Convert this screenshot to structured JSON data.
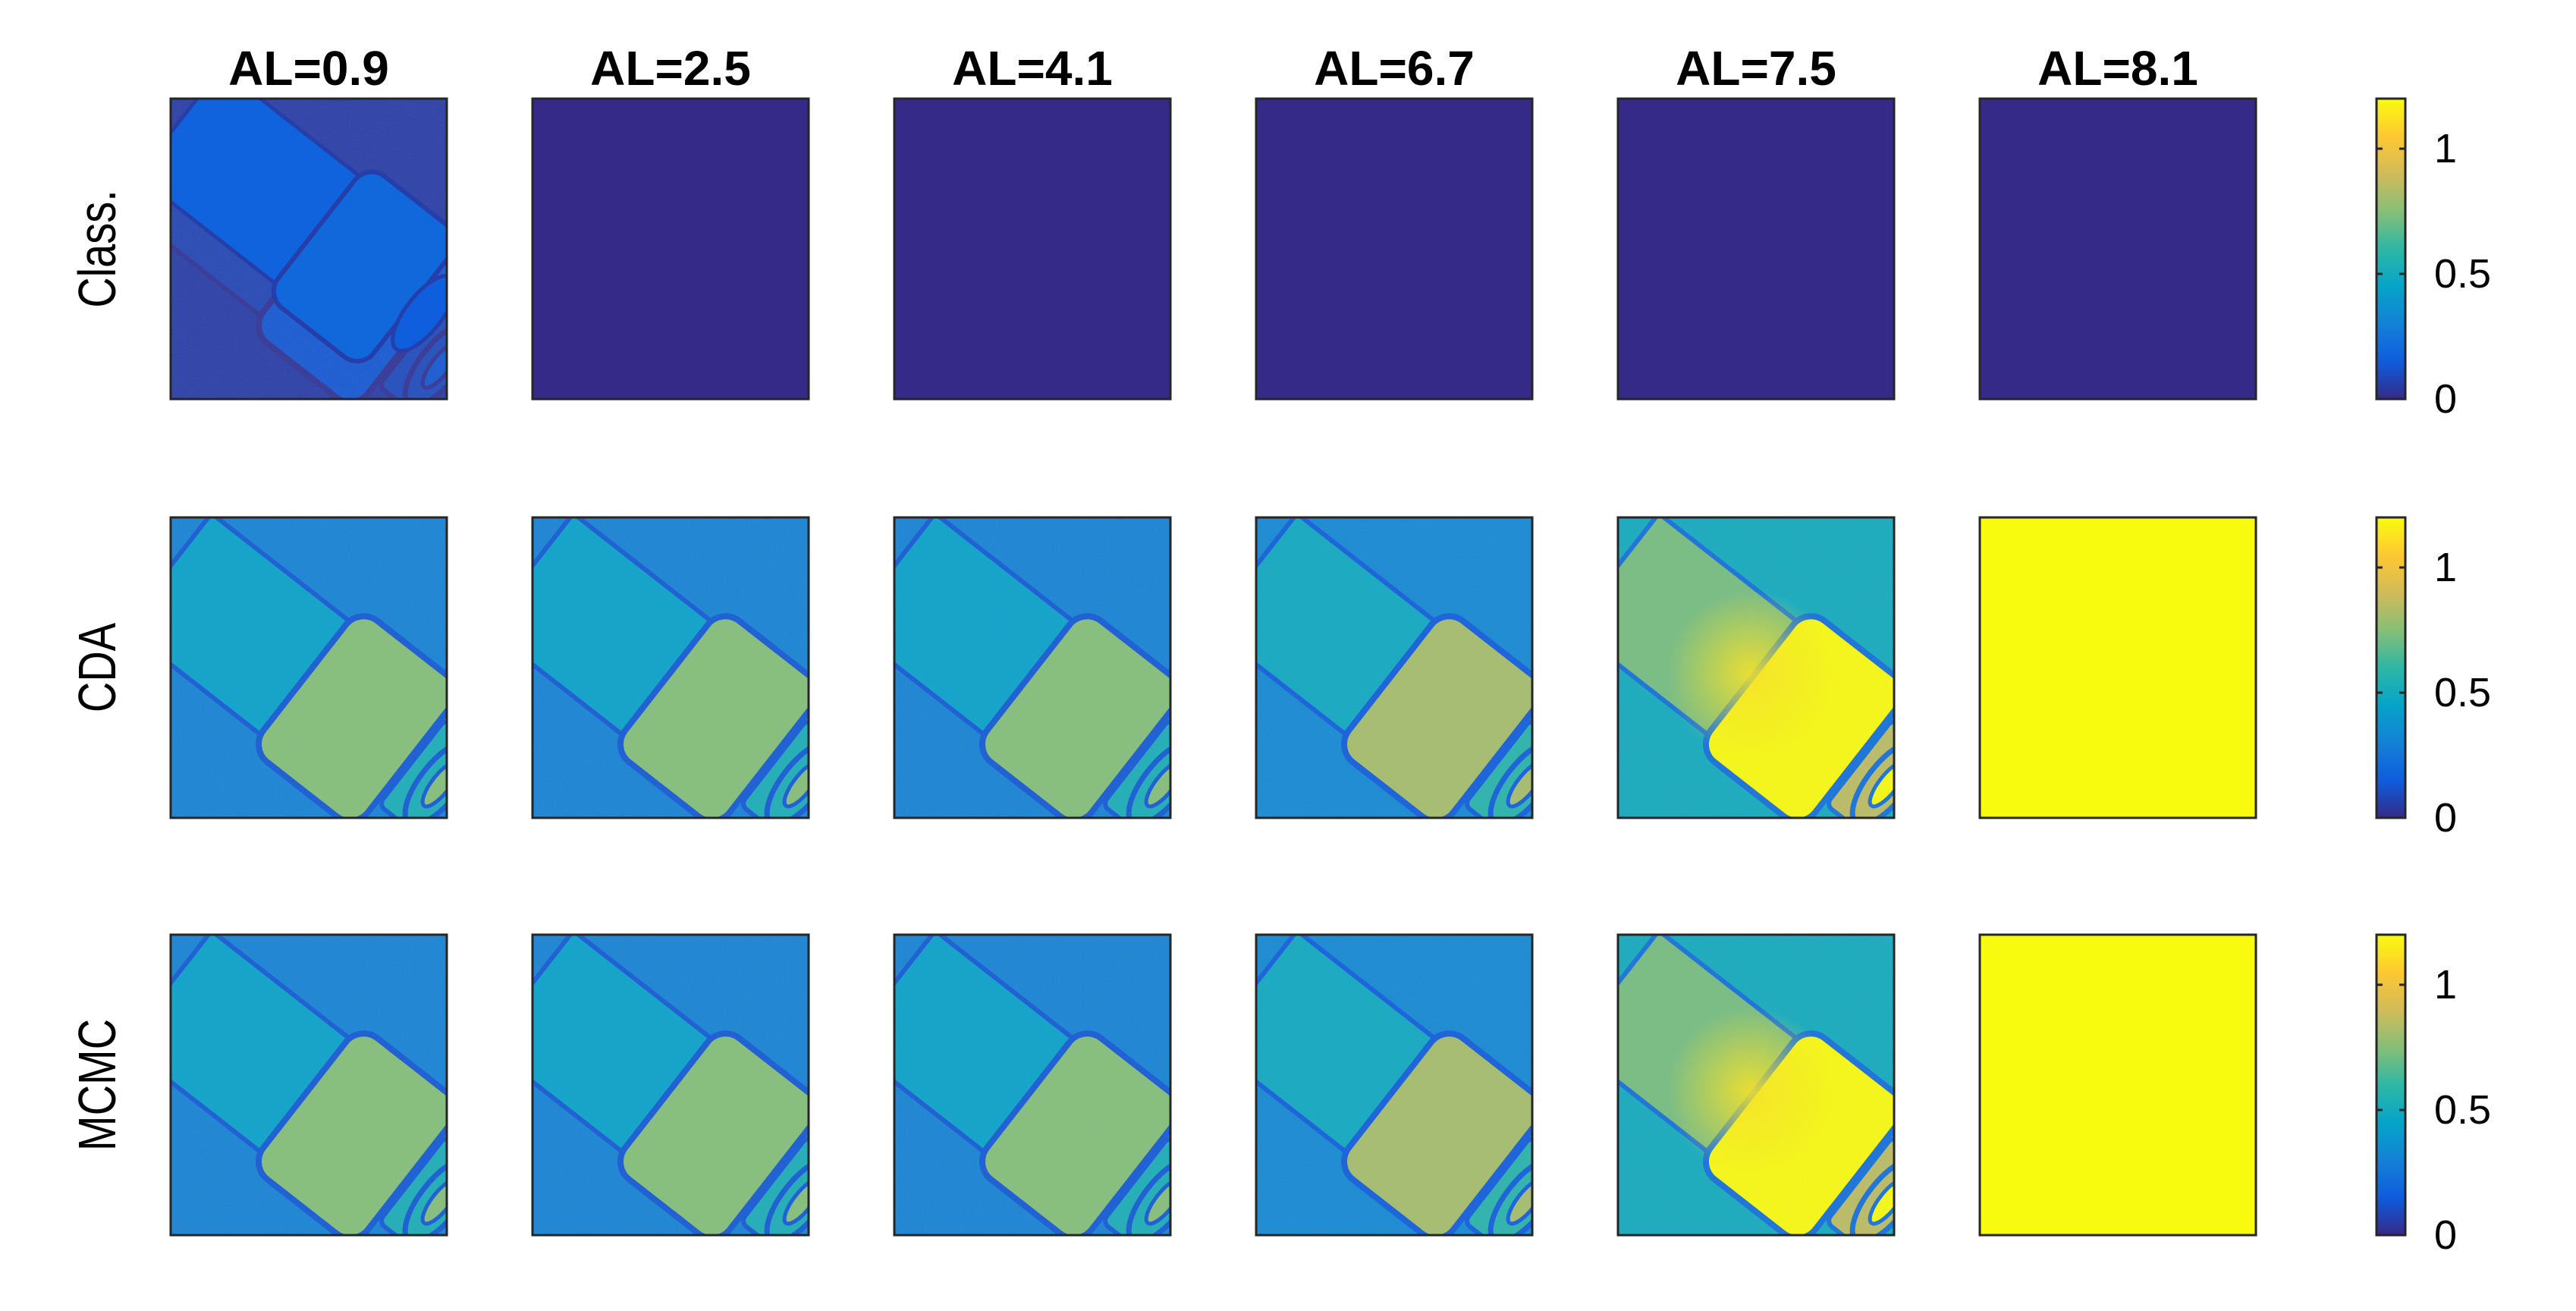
{
  "figure": {
    "columns": [
      {
        "label": "AL=0.9"
      },
      {
        "label": "AL=2.5"
      },
      {
        "label": "AL=4.1"
      },
      {
        "label": "AL=6.7"
      },
      {
        "label": "AL=7.5"
      },
      {
        "label": "AL=8.1"
      }
    ],
    "rows": [
      {
        "label": "Class.",
        "levels": [
          0.1,
          0.0,
          0.0,
          0.0,
          0.0,
          0.0
        ]
      },
      {
        "label": "CDA",
        "levels": [
          0.55,
          0.55,
          0.55,
          0.6,
          0.9,
          1.2
        ]
      },
      {
        "label": "MCMC",
        "levels": [
          0.55,
          0.55,
          0.55,
          0.6,
          0.9,
          1.2
        ]
      }
    ],
    "colorbar": {
      "ticks": [
        {
          "label": "0",
          "value": 0
        },
        {
          "label": "0.5",
          "value": 0.5
        },
        {
          "label": "1",
          "value": 1
        }
      ],
      "range": [
        0,
        1.2
      ],
      "colormap": [
        "#352a87",
        "#0f5cdd",
        "#1481d6",
        "#06a4ca",
        "#2eb7a4",
        "#87bf77",
        "#d1bb59",
        "#fec832",
        "#f9fb0e"
      ]
    }
  }
}
